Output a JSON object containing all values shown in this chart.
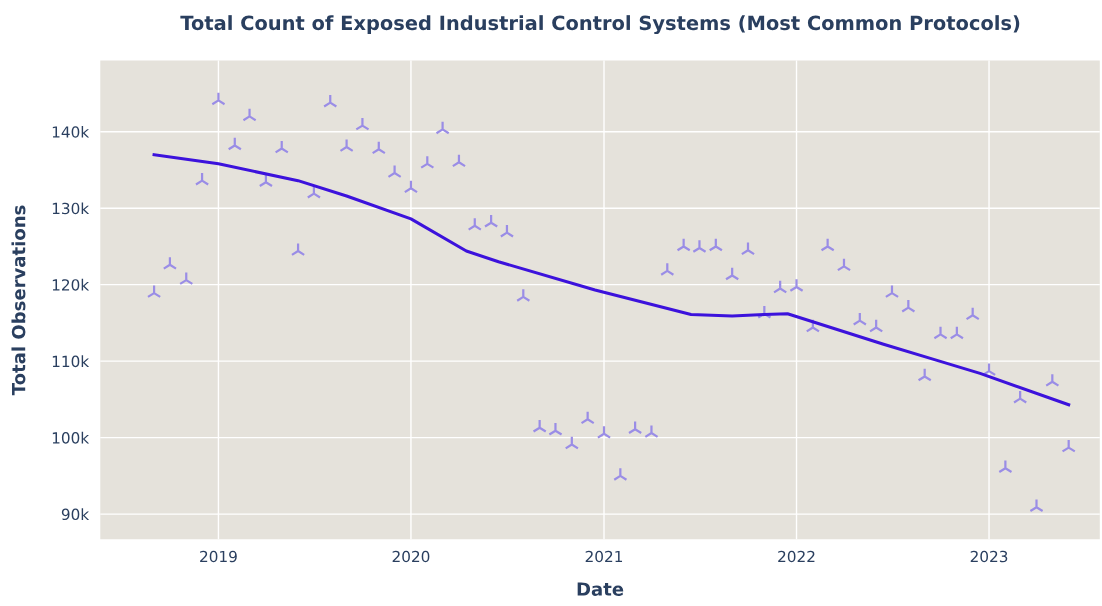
{
  "chart_data": {
    "type": "scatter",
    "title": "Total Count of Exposed Industrial Control Systems (Most Common Protocols)",
    "xlabel": "Date",
    "ylabel": "Total Observations",
    "xlim": [
      "2018-05-22",
      "2023-07-30"
    ],
    "xticks": [
      "2019",
      "2020",
      "2021",
      "2022",
      "2023"
    ],
    "ylim": [
      86700,
      149300
    ],
    "yticks": [
      {
        "value": 90000,
        "label": "90k"
      },
      {
        "value": 100000,
        "label": "100k"
      },
      {
        "value": 110000,
        "label": "110k"
      },
      {
        "value": 120000,
        "label": "120k"
      },
      {
        "value": 130000,
        "label": "130k"
      },
      {
        "value": 140000,
        "label": "140k"
      }
    ],
    "grid": true,
    "series": [
      {
        "marker": "cross",
        "color": "#9a8de6",
        "x": [
          "2018-09",
          "2018-10",
          "2018-11",
          "2018-12",
          "2019-01",
          "2019-02",
          "2019-03",
          "2019-04",
          "2019-05",
          "2019-06",
          "2019-07",
          "2019-08",
          "2019-09",
          "2019-10",
          "2019-11",
          "2019-12",
          "2020-01",
          "2020-02",
          "2020-03",
          "2020-04",
          "2020-05",
          "2020-06",
          "2020-07",
          "2020-08",
          "2020-09",
          "2020-10",
          "2020-11",
          "2020-12",
          "2021-01",
          "2021-02",
          "2021-03",
          "2021-04",
          "2021-05",
          "2021-06",
          "2021-07",
          "2021-08",
          "2021-09",
          "2021-10",
          "2021-11",
          "2021-12",
          "2022-01",
          "2022-02",
          "2022-03",
          "2022-04",
          "2022-05",
          "2022-06",
          "2022-07",
          "2022-08",
          "2022-09",
          "2022-10",
          "2022-11",
          "2022-12",
          "2023-01",
          "2023-02",
          "2023-03",
          "2023-04",
          "2023-05",
          "2023-06"
        ],
        "values": [
          118900,
          122600,
          120600,
          133600,
          144100,
          138200,
          142000,
          133400,
          137800,
          124400,
          131900,
          143800,
          138000,
          140800,
          137700,
          134600,
          132600,
          135800,
          140300,
          136000,
          127700,
          128100,
          126800,
          118400,
          101300,
          100900,
          99100,
          102400,
          100500,
          95000,
          101100,
          100600,
          121800,
          125000,
          124800,
          125000,
          121200,
          124500,
          116200,
          119500,
          119700,
          114400,
          125000,
          122400,
          115300,
          114400,
          118900,
          117000,
          108000,
          113500,
          113500,
          116000,
          108700,
          96000,
          105100,
          90900,
          107300,
          98700
        ]
      },
      {
        "type": "line",
        "color": "#3c12dc",
        "line_style": "solid",
        "x": [
          "2018-09-01",
          "2019-01-01",
          "2019-06-01",
          "2019-09-01",
          "2020-01-01",
          "2020-04-15",
          "2020-06-15",
          "2020-12-15",
          "2021-06-15",
          "2021-09-01",
          "2021-11-01",
          "2021-12-15",
          "2022-06-15",
          "2022-09-15",
          "2022-12-15",
          "2023-06-01"
        ],
        "values": [
          137000,
          135800,
          133600,
          131600,
          128600,
          124400,
          123000,
          119300,
          116100,
          115900,
          116100,
          116200,
          112200,
          110300,
          108400,
          104300
        ]
      }
    ]
  }
}
